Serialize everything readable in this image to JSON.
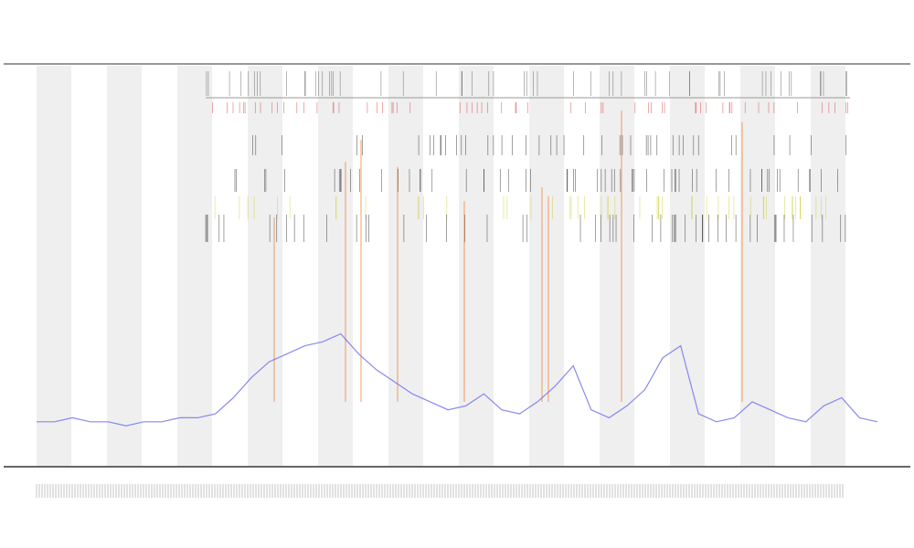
{
  "chart_data": {
    "type": "line",
    "categories": [
      null,
      null,
      null,
      null,
      null,
      null,
      null,
      null,
      null,
      null,
      null,
      null,
      null,
      null,
      null,
      null,
      null,
      null,
      null,
      null,
      null,
      null,
      null,
      null,
      null,
      null,
      null,
      null,
      null,
      null,
      null,
      null,
      null,
      null,
      null,
      null,
      null,
      null,
      null,
      null,
      null,
      null,
      null,
      null,
      null,
      null,
      null,
      null
    ],
    "series": [
      {
        "color": "#6b6bf0",
        "values": [
          11,
          11,
          12,
          11,
          11,
          10,
          11,
          11,
          12,
          12,
          13,
          17,
          22,
          26,
          28,
          30,
          31,
          33,
          28,
          24,
          21,
          18,
          16,
          14,
          15,
          18,
          14,
          13,
          16,
          20,
          25,
          14,
          12,
          15,
          19,
          27,
          30,
          13,
          11,
          12,
          16,
          14,
          12,
          11,
          15,
          17,
          12,
          11
        ]
      }
    ],
    "ylim": [
      0,
      100
    ]
  }
}
